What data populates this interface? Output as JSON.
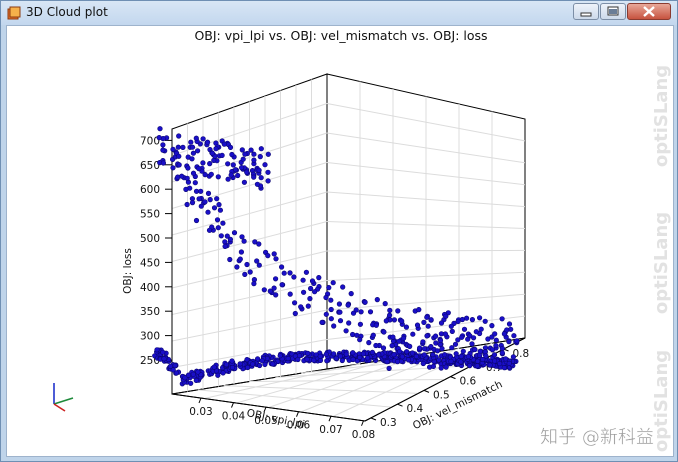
{
  "window": {
    "title": "3D Cloud plot"
  },
  "plot": {
    "title": "OBJ: vpi_lpi vs. OBJ: vel_mismatch vs. OBJ: loss",
    "z_axis": {
      "label": "OBJ: loss",
      "ticks": [
        "250",
        "300",
        "350",
        "400",
        "450",
        "500",
        "550",
        "600",
        "650",
        "700"
      ]
    },
    "x_axis": {
      "label": "OBJ: vpi_lpi",
      "ticks": [
        "0.03",
        "0.04",
        "0.05",
        "0.06",
        "0.07",
        "0.08"
      ]
    },
    "y_axis": {
      "label": "OBJ: vel_mismatch",
      "ticks": [
        "0.3",
        "0.4",
        "0.5",
        "0.6",
        "0.7",
        "0.8"
      ]
    }
  },
  "watermark": {
    "vertical_text": "optiSLang",
    "corner_text": "知乎 @新科益"
  },
  "colors": {
    "points": "#1a0fc8",
    "point_edge": "#0a0570",
    "grid": "#dcdcdc",
    "axes": "#000000"
  }
}
